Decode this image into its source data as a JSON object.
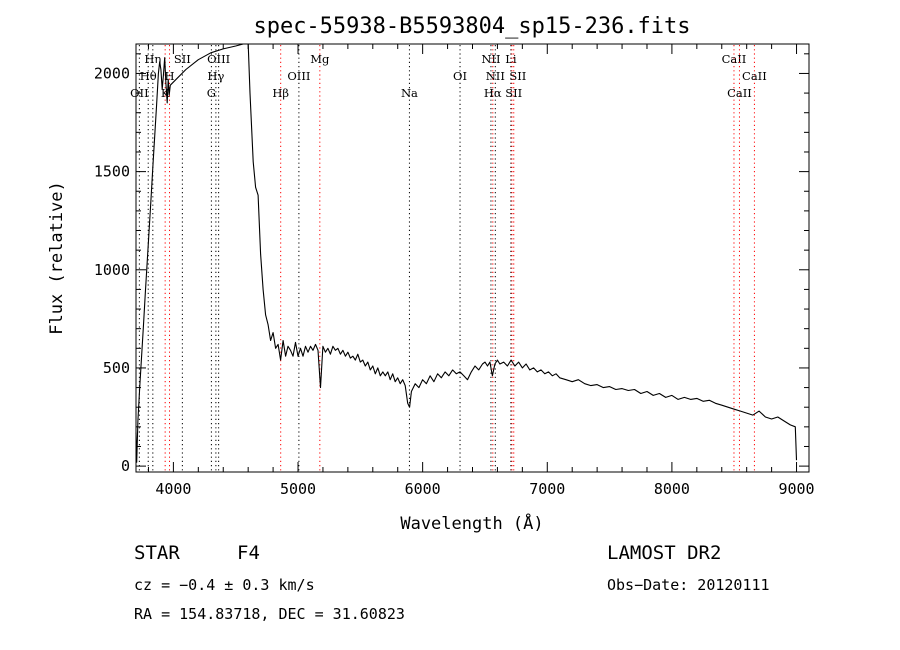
{
  "chart_data": {
    "type": "line",
    "title": "spec-55938-B5593804_sp15-236.fits",
    "xlabel": "Wavelength (Å)",
    "ylabel": "Flux (relative)",
    "xlim": [
      3700,
      9100
    ],
    "ylim": [
      -30,
      2150
    ],
    "x_ticks": [
      4000,
      5000,
      6000,
      7000,
      8000,
      9000
    ],
    "y_ticks": [
      0,
      500,
      1000,
      1500,
      2000
    ],
    "x_minor_step": 200,
    "y_minor_step": 100,
    "grid": false,
    "legend": "none",
    "series": [
      {
        "points": [
          [
            3700,
            170
          ],
          [
            3706,
            20
          ],
          [
            3715,
            230
          ],
          [
            3730,
            400
          ],
          [
            3745,
            560
          ],
          [
            3760,
            720
          ],
          [
            3775,
            880
          ],
          [
            3790,
            1040
          ],
          [
            3805,
            1200
          ],
          [
            3820,
            1360
          ],
          [
            3835,
            1520
          ],
          [
            3850,
            1680
          ],
          [
            3865,
            1840
          ],
          [
            3880,
            2000
          ],
          [
            3890,
            2060
          ],
          [
            3900,
            2020
          ],
          [
            3910,
            1920
          ],
          [
            3920,
            1990
          ],
          [
            3930,
            2080
          ],
          [
            3940,
            1950
          ],
          [
            3950,
            1850
          ],
          [
            3958,
            1970
          ],
          [
            3966,
            1890
          ],
          [
            3975,
            1940
          ],
          [
            4100,
            2020
          ],
          [
            4200,
            2070
          ],
          [
            4300,
            2105
          ],
          [
            4400,
            2125
          ],
          [
            4500,
            2140
          ],
          [
            4560,
            2150
          ],
          [
            4600,
            2150
          ],
          [
            4615,
            1900
          ],
          [
            4640,
            1550
          ],
          [
            4660,
            1420
          ],
          [
            4680,
            1380
          ],
          [
            4700,
            1080
          ],
          [
            4720,
            900
          ],
          [
            4740,
            770
          ],
          [
            4760,
            720
          ],
          [
            4780,
            640
          ],
          [
            4800,
            680
          ],
          [
            4820,
            600
          ],
          [
            4840,
            620
          ],
          [
            4860,
            540
          ],
          [
            4880,
            640
          ],
          [
            4900,
            560
          ],
          [
            4920,
            610
          ],
          [
            4940,
            590
          ],
          [
            4960,
            560
          ],
          [
            4980,
            630
          ],
          [
            5000,
            560
          ],
          [
            5020,
            600
          ],
          [
            5040,
            560
          ],
          [
            5060,
            610
          ],
          [
            5080,
            580
          ],
          [
            5100,
            610
          ],
          [
            5120,
            590
          ],
          [
            5140,
            620
          ],
          [
            5160,
            590
          ],
          [
            5180,
            400
          ],
          [
            5200,
            610
          ],
          [
            5220,
            580
          ],
          [
            5240,
            600
          ],
          [
            5260,
            570
          ],
          [
            5280,
            610
          ],
          [
            5300,
            590
          ],
          [
            5320,
            600
          ],
          [
            5340,
            570
          ],
          [
            5360,
            590
          ],
          [
            5380,
            560
          ],
          [
            5400,
            580
          ],
          [
            5420,
            550
          ],
          [
            5440,
            560
          ],
          [
            5460,
            540
          ],
          [
            5480,
            570
          ],
          [
            5500,
            530
          ],
          [
            5520,
            540
          ],
          [
            5540,
            510
          ],
          [
            5560,
            530
          ],
          [
            5580,
            490
          ],
          [
            5600,
            510
          ],
          [
            5620,
            470
          ],
          [
            5640,
            500
          ],
          [
            5660,
            460
          ],
          [
            5680,
            480
          ],
          [
            5700,
            460
          ],
          [
            5720,
            480
          ],
          [
            5740,
            440
          ],
          [
            5760,
            470
          ],
          [
            5780,
            430
          ],
          [
            5800,
            450
          ],
          [
            5820,
            420
          ],
          [
            5840,
            440
          ],
          [
            5860,
            410
          ],
          [
            5880,
            320
          ],
          [
            5895,
            300
          ],
          [
            5910,
            380
          ],
          [
            5940,
            420
          ],
          [
            5970,
            400
          ],
          [
            6000,
            440
          ],
          [
            6030,
            420
          ],
          [
            6060,
            460
          ],
          [
            6090,
            430
          ],
          [
            6120,
            470
          ],
          [
            6150,
            450
          ],
          [
            6180,
            480
          ],
          [
            6210,
            460
          ],
          [
            6240,
            490
          ],
          [
            6270,
            470
          ],
          [
            6300,
            480
          ],
          [
            6330,
            460
          ],
          [
            6360,
            440
          ],
          [
            6390,
            480
          ],
          [
            6420,
            510
          ],
          [
            6450,
            490
          ],
          [
            6480,
            520
          ],
          [
            6500,
            530
          ],
          [
            6520,
            510
          ],
          [
            6540,
            530
          ],
          [
            6560,
            460
          ],
          [
            6580,
            520
          ],
          [
            6600,
            540
          ],
          [
            6620,
            520
          ],
          [
            6650,
            530
          ],
          [
            6680,
            510
          ],
          [
            6710,
            540
          ],
          [
            6740,
            510
          ],
          [
            6770,
            530
          ],
          [
            6800,
            500
          ],
          [
            6830,
            520
          ],
          [
            6860,
            490
          ],
          [
            6890,
            500
          ],
          [
            6920,
            480
          ],
          [
            6950,
            490
          ],
          [
            6980,
            470
          ],
          [
            7010,
            480
          ],
          [
            7040,
            460
          ],
          [
            7070,
            470
          ],
          [
            7100,
            450
          ],
          [
            7150,
            440
          ],
          [
            7200,
            430
          ],
          [
            7250,
            440
          ],
          [
            7300,
            420
          ],
          [
            7350,
            410
          ],
          [
            7400,
            415
          ],
          [
            7450,
            400
          ],
          [
            7500,
            405
          ],
          [
            7550,
            390
          ],
          [
            7600,
            395
          ],
          [
            7650,
            385
          ],
          [
            7700,
            390
          ],
          [
            7750,
            370
          ],
          [
            7800,
            380
          ],
          [
            7850,
            360
          ],
          [
            7900,
            370
          ],
          [
            7950,
            350
          ],
          [
            8000,
            360
          ],
          [
            8050,
            340
          ],
          [
            8100,
            350
          ],
          [
            8150,
            340
          ],
          [
            8200,
            345
          ],
          [
            8250,
            330
          ],
          [
            8300,
            335
          ],
          [
            8350,
            320
          ],
          [
            8400,
            310
          ],
          [
            8450,
            300
          ],
          [
            8500,
            290
          ],
          [
            8550,
            280
          ],
          [
            8600,
            270
          ],
          [
            8650,
            260
          ],
          [
            8700,
            280
          ],
          [
            8750,
            250
          ],
          [
            8800,
            240
          ],
          [
            8850,
            250
          ],
          [
            8900,
            230
          ],
          [
            8950,
            210
          ],
          [
            8990,
            200
          ],
          [
            9000,
            30
          ]
        ]
      }
    ],
    "line_markers": [
      {
        "label": "OII",
        "wavelength": 3727,
        "color": "#000000",
        "row": 3,
        "dx": 0
      },
      {
        "label": "Hθ",
        "wavelength": 3798,
        "color": "#000000",
        "row": 2,
        "dx": 0
      },
      {
        "label": "Hη",
        "wavelength": 3835,
        "color": "#000000",
        "row": 1,
        "dx": 0
      },
      {
        "label": "K",
        "wavelength": 3934,
        "color": "#ff0000",
        "row": 3,
        "dx": 0
      },
      {
        "label": "H",
        "wavelength": 3969,
        "color": "#ff0000",
        "row": 2,
        "dx": 0
      },
      {
        "label": "SII",
        "wavelength": 4072,
        "color": "#000000",
        "row": 1,
        "dx": 0
      },
      {
        "label": "G",
        "wavelength": 4305,
        "color": "#000000",
        "row": 3,
        "dx": 0
      },
      {
        "label": "Hγ",
        "wavelength": 4341,
        "color": "#000000",
        "row": 2,
        "dx": 0
      },
      {
        "label": "OIII",
        "wavelength": 4363,
        "color": "#000000",
        "row": 1,
        "dx": 0
      },
      {
        "label": "Hβ",
        "wavelength": 4861,
        "color": "#ff0000",
        "row": 3,
        "dx": 0
      },
      {
        "label": "OIII",
        "wavelength": 5007,
        "color": "#000000",
        "row": 2,
        "dx": 0
      },
      {
        "label": "Mg",
        "wavelength": 5175,
        "color": "#ff0000",
        "row": 1,
        "dx": 0
      },
      {
        "label": "Na",
        "wavelength": 5894,
        "color": "#000000",
        "row": 3,
        "dx": 0
      },
      {
        "label": "OI",
        "wavelength": 6300,
        "color": "#000000",
        "row": 2,
        "dx": 0
      },
      {
        "label": "NII",
        "wavelength": 6548,
        "color": "#000000",
        "row": 1,
        "dx": 0
      },
      {
        "label": "NII",
        "wavelength": 6583,
        "color": "#000000",
        "row": 2,
        "dx": 0
      },
      {
        "label": "Hα",
        "wavelength": 6563,
        "color": "#ff0000",
        "row": 3,
        "dx": 0
      },
      {
        "label": "Li",
        "wavelength": 6708,
        "color": "#000000",
        "row": 1,
        "dx": 0
      },
      {
        "label": "SII",
        "wavelength": 6716,
        "color": "#ff0000",
        "row": 2,
        "dx": 6
      },
      {
        "label": "SII",
        "wavelength": 6731,
        "color": "#ff0000",
        "row": 3,
        "dx": 0
      },
      {
        "label": "CaII",
        "wavelength": 8498,
        "color": "#ff0000",
        "row": 1,
        "dx": 0
      },
      {
        "label": "CaII",
        "wavelength": 8542,
        "color": "#ff0000",
        "row": 3,
        "dx": 0
      },
      {
        "label": "CaII",
        "wavelength": 8662,
        "color": "#ff0000",
        "row": 2,
        "dx": 0
      }
    ]
  },
  "info": {
    "object_class": "STAR",
    "subclass": "F4",
    "survey": "LAMOST DR2",
    "cz": "cz = −0.4 ± 0.3 km/s",
    "obs_date": "Obs−Date: 20120111",
    "coords": "RA = 154.83718, DEC =  31.60823"
  }
}
